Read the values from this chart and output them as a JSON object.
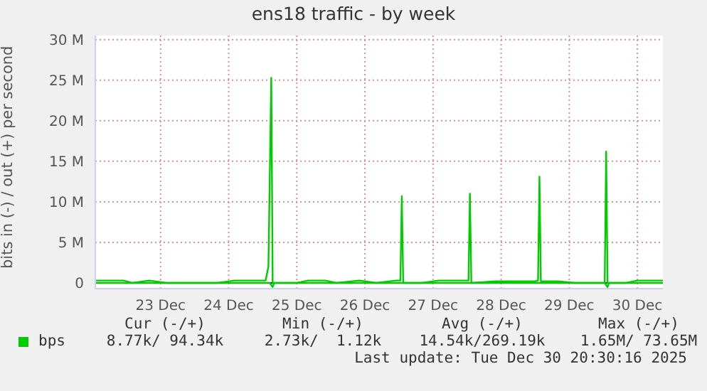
{
  "chart_data": {
    "type": "line",
    "title": "ens18 traffic - by week",
    "ylabel": "bits in (-) / out (+) per second",
    "xlim": [
      "2025-12-22T13:00",
      "2025-12-30T21:00"
    ],
    "xticks": [
      {
        "value": "2025-12-23T12:00",
        "label": "23 Dec"
      },
      {
        "value": "2025-12-24T12:00",
        "label": "24 Dec"
      },
      {
        "value": "2025-12-25T12:00",
        "label": "25 Dec"
      },
      {
        "value": "2025-12-26T12:00",
        "label": "26 Dec"
      },
      {
        "value": "2025-12-27T12:00",
        "label": "27 Dec"
      },
      {
        "value": "2025-12-28T12:00",
        "label": "28 Dec"
      },
      {
        "value": "2025-12-29T12:00",
        "label": "29 Dec"
      },
      {
        "value": "2025-12-30T12:00",
        "label": "30 Dec"
      }
    ],
    "ylim": [
      -0.7,
      30.5
    ],
    "yticks": [
      {
        "value": 0,
        "label": "0"
      },
      {
        "value": 5,
        "label": "5 M"
      },
      {
        "value": 10,
        "label": "10 M"
      },
      {
        "value": 15,
        "label": "15 M"
      },
      {
        "value": 20,
        "label": "20 M"
      },
      {
        "value": 25,
        "label": "25 M"
      },
      {
        "value": 30,
        "label": "30 M"
      }
    ],
    "grid": true,
    "legend": "bottom",
    "marker": "none",
    "line_style": "solid",
    "ref_lines": [
      {
        "axis": "y",
        "value": 0,
        "color": "#000000"
      }
    ],
    "series": [
      {
        "name": "bps",
        "color": "#00cc00",
        "x": [
          "2025-12-22T13:00",
          "2025-12-22T18:00",
          "2025-12-22T23:00",
          "2025-12-23T02:00",
          "2025-12-23T08:00",
          "2025-12-23T14:00",
          "2025-12-24T00:00",
          "2025-12-24T08:00",
          "2025-12-24T14:00",
          "2025-12-24T22:00",
          "2025-12-25T01:00",
          "2025-12-25T02:00",
          "2025-12-25T03:00",
          "2025-12-25T03:30",
          "2025-12-25T06:00",
          "2025-12-25T12:00",
          "2025-12-25T16:00",
          "2025-12-25T22:00",
          "2025-12-26T02:00",
          "2025-12-26T10:00",
          "2025-12-26T16:00",
          "2025-12-26T23:00",
          "2025-12-27T00:30",
          "2025-12-27T01:00",
          "2025-12-27T01:30",
          "2025-12-27T08:00",
          "2025-12-27T14:00",
          "2025-12-27T20:00",
          "2025-12-28T00:30",
          "2025-12-28T01:00",
          "2025-12-28T01:30",
          "2025-12-28T10:00",
          "2025-12-28T20:00",
          "2025-12-29T00:00",
          "2025-12-29T01:00",
          "2025-12-29T01:30",
          "2025-12-29T02:00",
          "2025-12-29T08:00",
          "2025-12-29T14:00",
          "2025-12-29T20:00",
          "2025-12-30T00:30",
          "2025-12-30T01:00",
          "2025-12-30T01:30",
          "2025-12-30T08:00",
          "2025-12-30T12:00",
          "2025-12-30T21:00"
        ],
        "values": [
          0.3,
          0.3,
          0.3,
          0,
          0.3,
          0,
          0,
          0,
          0.3,
          0.3,
          0.3,
          2,
          25.3,
          0,
          0,
          0,
          0.3,
          0.3,
          0,
          0.3,
          0,
          0.3,
          0.3,
          10.7,
          0,
          0,
          0.3,
          0.3,
          0.3,
          11,
          0,
          0.2,
          0.2,
          0.2,
          0.3,
          13.1,
          0.2,
          0.2,
          0,
          0,
          0,
          16.2,
          0,
          0,
          0.3,
          0.3
        ]
      },
      {
        "color": "#00cc00",
        "x": [
          "2025-12-22T13:00",
          "2025-12-25T02:30",
          "2025-12-25T03:30",
          "2025-12-25T04:00",
          "2025-12-30T00:30",
          "2025-12-30T01:30",
          "2025-12-30T02:00",
          "2025-12-30T21:00"
        ],
        "values": [
          0,
          0,
          -0.5,
          0,
          0,
          -0.5,
          0,
          0
        ]
      }
    ],
    "annotations": [
      "Cur (-/+)",
      "Min (-/+)",
      "Avg (-/+)",
      "Max (-/+)",
      "8.77k/ 94.34k",
      "2.73k/  1.12k",
      "14.54k/269.19k",
      "1.65M/ 73.65M",
      "Last update: Tue Dec 30 20:30:16 2025"
    ]
  }
}
